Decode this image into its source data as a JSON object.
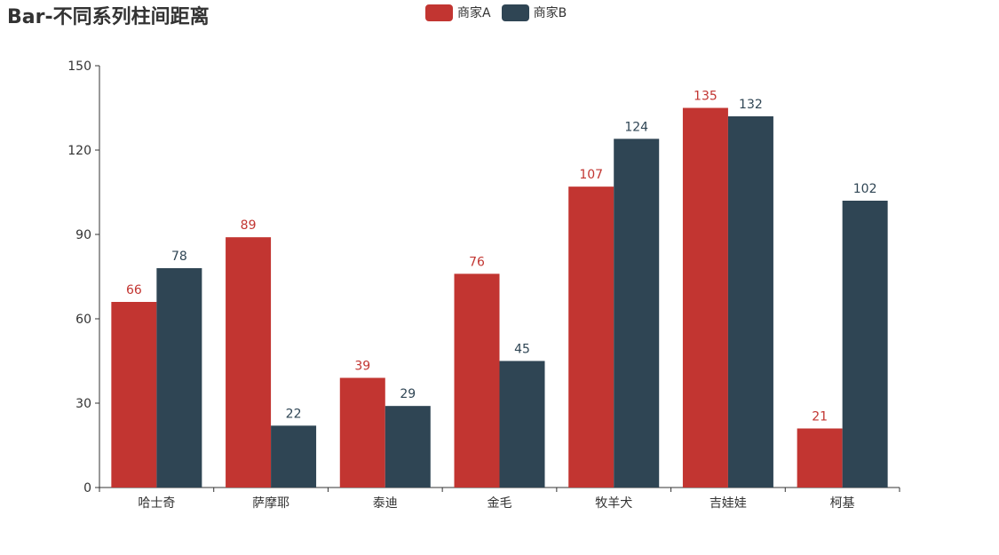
{
  "chart_data": {
    "type": "bar",
    "title": "Bar-不同系列柱间距离",
    "categories": [
      "哈士奇",
      "萨摩耶",
      "泰迪",
      "金毛",
      "牧羊犬",
      "吉娃娃",
      "柯基"
    ],
    "series": [
      {
        "name": "商家A",
        "color": "#c23531",
        "values": [
          66,
          89,
          39,
          76,
          107,
          135,
          21
        ]
      },
      {
        "name": "商家B",
        "color": "#2f4554",
        "values": [
          78,
          22,
          29,
          45,
          124,
          132,
          102
        ]
      }
    ],
    "xlabel": "",
    "ylabel": "",
    "ylim": [
      0,
      150
    ],
    "yticks": [
      0,
      30,
      60,
      90,
      120,
      150
    ],
    "grid": false,
    "legend_position": "top-center",
    "data_labels": "top"
  }
}
